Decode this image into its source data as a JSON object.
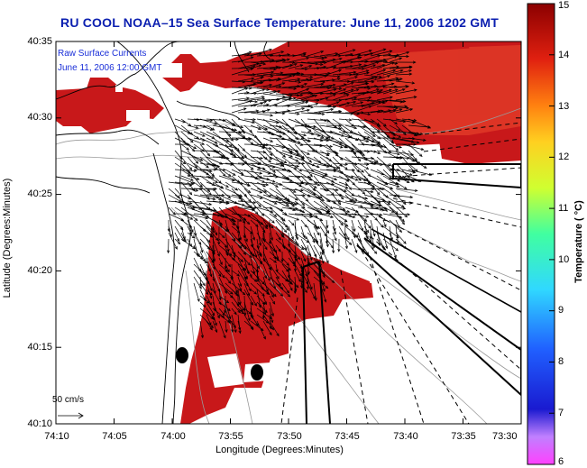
{
  "title": "RU COOL  NOAA–15  Sea Surface Temperature:  June 11, 2006 1202 GMT",
  "legend": {
    "line1": "Raw Surface Currents",
    "line2": "June 11, 2006 12:00 GMT",
    "scale_label": "50 cm/s"
  },
  "axes": {
    "x_label": "Longitude (Degrees:Minutes)",
    "y_label": "Latitude (Degrees:Minutes)",
    "x_ticks": [
      "74:10",
      "74:05",
      "74:00",
      "73:55",
      "73:50",
      "73:45",
      "73:40",
      "73:35",
      "73:30"
    ],
    "y_ticks": [
      "40:35",
      "40:30",
      "40:25",
      "40:20",
      "40:15",
      "40:10"
    ]
  },
  "colorbar": {
    "label": "Temperature ( °C)",
    "ticks": [
      "15",
      "14",
      "13",
      "12",
      "11",
      "10",
      "9",
      "8",
      "7",
      "6"
    ],
    "min": 6,
    "max": 15,
    "colors": [
      "#ff40ff",
      "#b0b0ff",
      "#1010c8",
      "#3070ff",
      "#40d0ff",
      "#40ff90",
      "#c0ff30",
      "#ffd020",
      "#ff7010",
      "#e02010",
      "#8b0000"
    ]
  },
  "colors": {
    "sst_warm": "#c8181a",
    "sst_cooler": "#e03a28",
    "title": "#0b1fb0",
    "arrows": "#000000"
  }
}
